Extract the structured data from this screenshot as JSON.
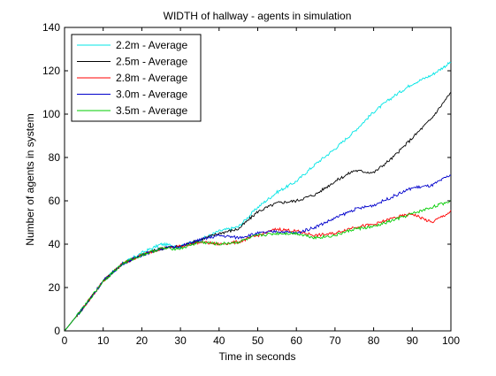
{
  "chart_data": {
    "type": "line",
    "title": "WIDTH of hallway - agents in simulation",
    "xlabel": "Time in seconds",
    "ylabel": "Number of agents in system",
    "xlim": [
      0,
      100
    ],
    "ylim": [
      0,
      140
    ],
    "xticks": [
      0,
      10,
      20,
      30,
      40,
      50,
      60,
      70,
      80,
      90,
      100
    ],
    "yticks": [
      0,
      20,
      40,
      60,
      80,
      100,
      120,
      140
    ],
    "grid": false,
    "legend_position": "top-left",
    "x": [
      0,
      5,
      10,
      15,
      20,
      25,
      30,
      35,
      40,
      45,
      50,
      55,
      60,
      65,
      70,
      75,
      80,
      85,
      90,
      95,
      100
    ],
    "series": [
      {
        "name": "2.2m - Average",
        "color": "#00e5e5",
        "values": [
          0,
          11,
          23,
          31,
          36,
          40,
          39,
          42,
          46,
          48,
          57,
          64,
          69,
          77,
          84,
          92,
          101,
          108,
          114,
          118,
          124
        ]
      },
      {
        "name": "2.5m - Average",
        "color": "#000000",
        "values": [
          0,
          11,
          23,
          31,
          35,
          38,
          39,
          42,
          45,
          47,
          55,
          59,
          60,
          63,
          69,
          74,
          73,
          80,
          89,
          98,
          110
        ]
      },
      {
        "name": "2.8m - Average",
        "color": "#ff0000",
        "values": [
          0,
          11,
          23,
          31,
          35,
          38,
          39,
          41,
          40,
          41,
          44,
          47,
          46,
          44,
          45,
          48,
          49,
          52,
          54,
          50,
          55
        ]
      },
      {
        "name": "3.0m - Average",
        "color": "#0000cc",
        "values": [
          0,
          11,
          23,
          31,
          35,
          38,
          39,
          42,
          44,
          43,
          45,
          46,
          45,
          48,
          52,
          56,
          58,
          62,
          66,
          67,
          72
        ]
      },
      {
        "name": "3.5m - Average",
        "color": "#00cc00",
        "values": [
          0,
          11,
          23,
          31,
          35,
          38,
          38,
          41,
          40,
          41,
          44,
          45,
          45,
          43,
          44,
          47,
          48,
          51,
          54,
          57,
          60
        ]
      }
    ]
  }
}
